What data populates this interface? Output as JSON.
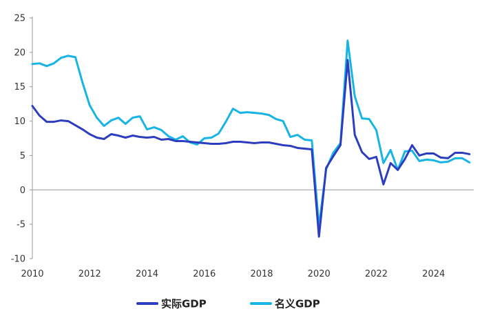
{
  "chart_data": {
    "type": "line",
    "title": "",
    "xlabel": "",
    "ylabel": "",
    "xlim": [
      2010.0,
      2025.4
    ],
    "ylim": [
      -10,
      25
    ],
    "y_ticks": [
      -10,
      -5,
      0,
      5,
      10,
      15,
      20,
      25
    ],
    "x_ticks": [
      2010,
      2012,
      2014,
      2016,
      2018,
      2020,
      2022,
      2024
    ],
    "grid": false,
    "legend_position": "bottom",
    "x": [
      2010.0,
      2010.25,
      2010.5,
      2010.75,
      2011.0,
      2011.25,
      2011.5,
      2011.75,
      2012.0,
      2012.25,
      2012.5,
      2012.75,
      2013.0,
      2013.25,
      2013.5,
      2013.75,
      2014.0,
      2014.25,
      2014.5,
      2014.75,
      2015.0,
      2015.25,
      2015.5,
      2015.75,
      2016.0,
      2016.25,
      2016.5,
      2016.75,
      2017.0,
      2017.25,
      2017.5,
      2017.75,
      2018.0,
      2018.25,
      2018.5,
      2018.75,
      2019.0,
      2019.25,
      2019.5,
      2019.75,
      2020.0,
      2020.25,
      2020.5,
      2020.75,
      2021.0,
      2021.25,
      2021.5,
      2021.75,
      2022.0,
      2022.25,
      2022.5,
      2022.75,
      2023.0,
      2023.25,
      2023.5,
      2023.75,
      2024.0,
      2024.25,
      2024.5,
      2024.75,
      2025.0,
      2025.25
    ],
    "series": [
      {
        "name": "实际GDP",
        "color": "#2d3dbf",
        "values": [
          12.2,
          10.8,
          9.9,
          9.9,
          10.1,
          10.0,
          9.4,
          8.8,
          8.1,
          7.6,
          7.4,
          8.1,
          7.9,
          7.6,
          7.9,
          7.7,
          7.6,
          7.7,
          7.3,
          7.4,
          7.1,
          7.1,
          7.0,
          6.9,
          6.8,
          6.7,
          6.7,
          6.8,
          7.0,
          7.0,
          6.9,
          6.8,
          6.9,
          6.9,
          6.7,
          6.5,
          6.4,
          6.1,
          6.0,
          5.9,
          -6.8,
          3.2,
          4.9,
          6.5,
          18.9,
          8.0,
          5.5,
          4.5,
          4.8,
          0.8,
          3.9,
          2.9,
          4.5,
          6.5,
          5.0,
          5.3,
          5.3,
          4.7,
          4.6,
          5.4,
          5.4,
          5.2
        ]
      },
      {
        "name": "名义GDP",
        "color": "#17b4e6",
        "values": [
          18.3,
          18.4,
          18.0,
          18.4,
          19.2,
          19.5,
          19.3,
          15.6,
          12.3,
          10.5,
          9.3,
          10.1,
          10.5,
          9.6,
          10.5,
          10.7,
          8.8,
          9.1,
          8.7,
          7.8,
          7.3,
          7.8,
          6.9,
          6.6,
          7.5,
          7.6,
          8.2,
          9.9,
          11.8,
          11.2,
          11.3,
          11.2,
          11.1,
          10.9,
          10.3,
          10.0,
          7.7,
          8.0,
          7.3,
          7.2,
          -5.3,
          3.0,
          5.4,
          6.8,
          21.7,
          13.6,
          10.4,
          10.3,
          8.7,
          3.9,
          5.8,
          2.9,
          5.6,
          5.7,
          4.2,
          4.4,
          4.3,
          4.0,
          4.1,
          4.6,
          4.6,
          4.0
        ]
      }
    ]
  }
}
